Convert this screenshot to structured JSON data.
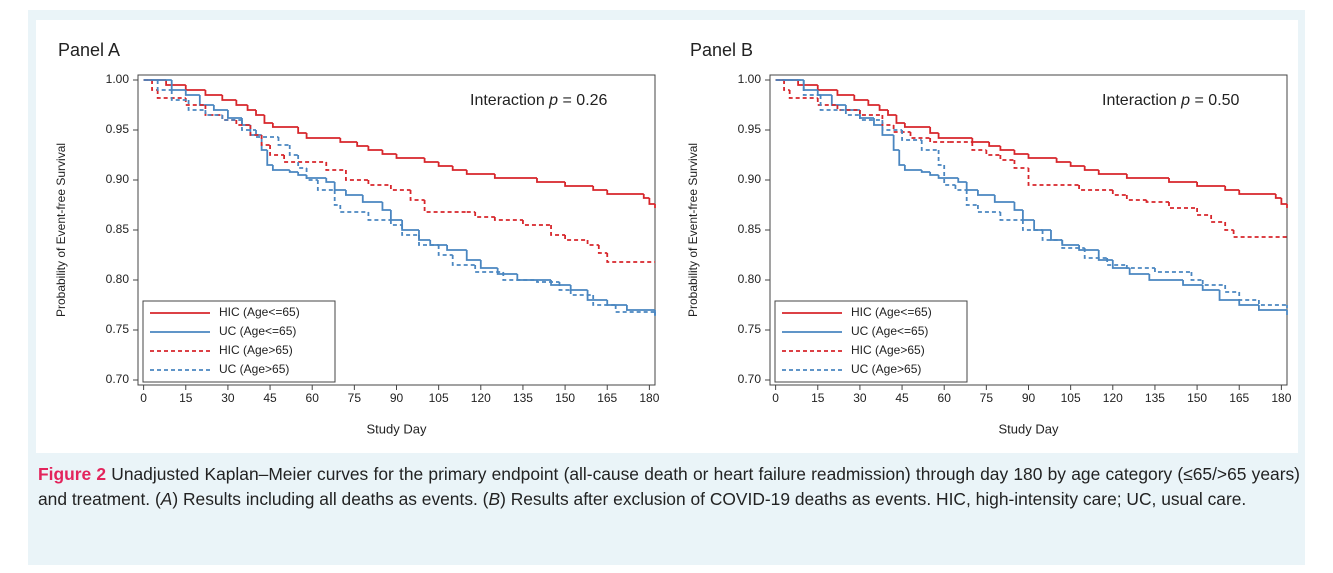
{
  "chart_data": [
    {
      "type": "step",
      "title": "Panel A",
      "annotation": [
        "Interaction ",
        "p",
        " = 0.26"
      ],
      "xlabel": "Study Day",
      "ylabel": "Probability of Event-free Survival",
      "xlim": [
        -2,
        182
      ],
      "xticks": [
        0,
        15,
        30,
        45,
        60,
        75,
        90,
        105,
        120,
        135,
        150,
        165,
        180
      ],
      "ylim": [
        0.695,
        1.005
      ],
      "yticks": [
        {
          "value": 0.7,
          "label": "0.70"
        },
        {
          "value": 0.75,
          "label": "0.75"
        },
        {
          "value": 0.8,
          "label": "0.80"
        },
        {
          "value": 0.85,
          "label": "0.85"
        },
        {
          "value": 0.9,
          "label": "0.90"
        },
        {
          "value": 0.95,
          "label": "0.95"
        },
        {
          "value": 1,
          "label": "1.00"
        }
      ],
      "legend": "lower left",
      "series": [
        {
          "name": "HIC (Age<=65)",
          "color": "#d7262b",
          "line_style": "solid",
          "x": [
            0,
            8,
            15,
            22,
            28,
            33,
            37,
            40,
            43,
            46,
            55,
            58,
            70,
            76,
            80,
            85,
            90,
            100,
            105,
            110,
            115,
            125,
            140,
            150,
            160,
            165,
            178,
            180,
            182
          ],
          "values": [
            1.0,
            0.995,
            0.99,
            0.985,
            0.98,
            0.975,
            0.97,
            0.965,
            0.957,
            0.953,
            0.947,
            0.942,
            0.938,
            0.934,
            0.93,
            0.926,
            0.922,
            0.918,
            0.914,
            0.91,
            0.906,
            0.902,
            0.898,
            0.894,
            0.89,
            0.886,
            0.882,
            0.876,
            0.872
          ]
        },
        {
          "name": "UC (Age<=65)",
          "color": "#4a86c0",
          "line_style": "solid",
          "x": [
            0,
            10,
            15,
            20,
            25,
            30,
            35,
            38,
            42,
            44,
            46,
            52,
            55,
            58,
            65,
            68,
            72,
            78,
            85,
            88,
            92,
            98,
            102,
            108,
            115,
            120,
            126,
            133,
            145,
            152,
            158,
            165,
            172,
            182
          ],
          "values": [
            1.0,
            0.99,
            0.985,
            0.975,
            0.97,
            0.962,
            0.955,
            0.945,
            0.93,
            0.915,
            0.91,
            0.908,
            0.905,
            0.902,
            0.898,
            0.89,
            0.885,
            0.878,
            0.87,
            0.86,
            0.85,
            0.84,
            0.835,
            0.83,
            0.82,
            0.812,
            0.806,
            0.8,
            0.795,
            0.79,
            0.78,
            0.775,
            0.77,
            0.765
          ]
        },
        {
          "name": "HIC (Age>65)",
          "color": "#d7262b",
          "line_style": "dashed",
          "x": [
            0,
            3,
            5,
            15,
            22,
            28,
            33,
            38,
            42,
            45,
            50,
            65,
            72,
            80,
            88,
            95,
            100,
            115,
            118,
            125,
            135,
            145,
            150,
            158,
            162,
            165,
            182
          ],
          "values": [
            1.0,
            0.99,
            0.982,
            0.975,
            0.965,
            0.96,
            0.955,
            0.945,
            0.935,
            0.925,
            0.918,
            0.91,
            0.9,
            0.895,
            0.89,
            0.88,
            0.868,
            0.868,
            0.863,
            0.86,
            0.855,
            0.845,
            0.84,
            0.835,
            0.827,
            0.818,
            0.818
          ]
        },
        {
          "name": "UC (Age>65)",
          "color": "#4a86c0",
          "line_style": "dashed",
          "x": [
            0,
            5,
            10,
            16,
            22,
            28,
            35,
            40,
            48,
            52,
            55,
            58,
            62,
            68,
            70,
            80,
            88,
            92,
            98,
            105,
            110,
            118,
            128,
            140,
            148,
            152,
            160,
            168,
            182
          ],
          "values": [
            1.0,
            0.99,
            0.98,
            0.97,
            0.965,
            0.96,
            0.95,
            0.943,
            0.935,
            0.925,
            0.912,
            0.9,
            0.89,
            0.875,
            0.868,
            0.86,
            0.855,
            0.845,
            0.835,
            0.825,
            0.815,
            0.808,
            0.8,
            0.798,
            0.79,
            0.785,
            0.775,
            0.768,
            0.763
          ]
        }
      ]
    },
    {
      "type": "step",
      "title": "Panel B",
      "annotation": [
        "Interaction ",
        "p",
        " = 0.50"
      ],
      "xlabel": "Study Day",
      "ylabel": "Probability of Event-free Survival",
      "xlim": [
        -2,
        182
      ],
      "xticks": [
        0,
        15,
        30,
        45,
        60,
        75,
        90,
        105,
        120,
        135,
        150,
        165,
        180
      ],
      "ylim": [
        0.695,
        1.005
      ],
      "yticks": [
        {
          "value": 0.7,
          "label": "0.70"
        },
        {
          "value": 0.75,
          "label": "0.75"
        },
        {
          "value": 0.8,
          "label": "0.80"
        },
        {
          "value": 0.85,
          "label": "0.85"
        },
        {
          "value": 0.9,
          "label": "0.90"
        },
        {
          "value": 0.95,
          "label": "0.95"
        },
        {
          "value": 1,
          "label": "1.00"
        }
      ],
      "legend": "lower left",
      "series": [
        {
          "name": "HIC (Age<=65)",
          "color": "#d7262b",
          "line_style": "solid",
          "x": [
            0,
            8,
            15,
            22,
            28,
            33,
            37,
            40,
            43,
            46,
            55,
            58,
            70,
            76,
            80,
            85,
            90,
            100,
            105,
            110,
            115,
            125,
            140,
            150,
            160,
            165,
            178,
            180,
            182
          ],
          "values": [
            1.0,
            0.995,
            0.99,
            0.985,
            0.98,
            0.975,
            0.97,
            0.965,
            0.957,
            0.953,
            0.947,
            0.942,
            0.938,
            0.934,
            0.93,
            0.926,
            0.922,
            0.918,
            0.914,
            0.91,
            0.906,
            0.902,
            0.898,
            0.894,
            0.89,
            0.886,
            0.882,
            0.876,
            0.872
          ]
        },
        {
          "name": "UC (Age<=65)",
          "color": "#4a86c0",
          "line_style": "solid",
          "x": [
            0,
            10,
            15,
            20,
            25,
            30,
            35,
            38,
            42,
            44,
            46,
            52,
            55,
            58,
            65,
            68,
            72,
            78,
            85,
            88,
            92,
            98,
            102,
            108,
            115,
            120,
            126,
            133,
            145,
            152,
            158,
            165,
            172,
            182
          ],
          "values": [
            1.0,
            0.99,
            0.985,
            0.975,
            0.97,
            0.962,
            0.955,
            0.945,
            0.93,
            0.915,
            0.91,
            0.908,
            0.905,
            0.902,
            0.898,
            0.89,
            0.885,
            0.878,
            0.87,
            0.86,
            0.85,
            0.84,
            0.835,
            0.83,
            0.82,
            0.812,
            0.806,
            0.8,
            0.795,
            0.79,
            0.78,
            0.775,
            0.77,
            0.765
          ]
        },
        {
          "name": "HIC (Age>65)",
          "color": "#d7262b",
          "line_style": "dashed",
          "x": [
            0,
            3,
            5,
            15,
            22,
            30,
            38,
            42,
            48,
            55,
            62,
            70,
            75,
            80,
            85,
            90,
            108,
            120,
            125,
            132,
            140,
            150,
            155,
            160,
            163,
            182
          ],
          "values": [
            1.0,
            0.99,
            0.982,
            0.975,
            0.97,
            0.965,
            0.955,
            0.948,
            0.942,
            0.938,
            0.938,
            0.93,
            0.925,
            0.92,
            0.912,
            0.895,
            0.89,
            0.885,
            0.88,
            0.878,
            0.872,
            0.865,
            0.858,
            0.85,
            0.843,
            0.843
          ]
        },
        {
          "name": "UC (Age>65)",
          "color": "#4a86c0",
          "line_style": "dashed",
          "x": [
            0,
            10,
            16,
            25,
            30,
            38,
            45,
            52,
            58,
            60,
            64,
            68,
            72,
            80,
            88,
            95,
            102,
            110,
            118,
            125,
            135,
            148,
            152,
            160,
            165,
            172,
            182
          ],
          "values": [
            1.0,
            0.985,
            0.97,
            0.965,
            0.96,
            0.95,
            0.94,
            0.93,
            0.915,
            0.895,
            0.89,
            0.875,
            0.868,
            0.86,
            0.85,
            0.84,
            0.832,
            0.822,
            0.815,
            0.812,
            0.808,
            0.8,
            0.795,
            0.788,
            0.78,
            0.775,
            0.772
          ]
        }
      ]
    }
  ],
  "caption": {
    "label": "Figure 2",
    "text": [
      "Unadjusted Kaplan–Meier curves for the primary endpoint (all-cause death or heart failure readmission) through day 180 by age category (≤65/>65 years) and treatment. (",
      "A",
      ") Results including all deaths as events. (",
      "B",
      ") Results after exclusion of COVID-19 deaths as events. HIC, high-intensity care; UC, usual care."
    ]
  }
}
